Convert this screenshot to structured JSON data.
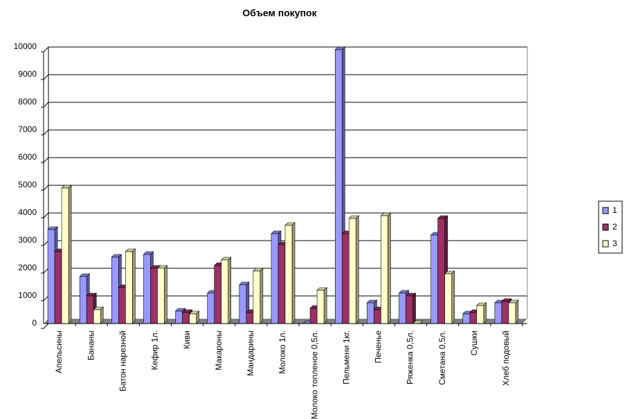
{
  "chart_data": {
    "type": "bar",
    "title": "Объем покупок",
    "categories": [
      "Апельсины",
      "Бананы",
      "Батон нарезной",
      "Кефир 1л.",
      "Киви",
      "Макароны",
      "Мандарины",
      "Молоко 1л.",
      "Молоко топленое 0,5л.",
      "Пельмени 1кг.",
      "Печенье",
      "Ряженка 0,5л.",
      "Сметана 0,5л.",
      "Сушки",
      "Хлеб подовый"
    ],
    "series": [
      {
        "name": "1",
        "color": "#9999ff",
        "values": [
          3400,
          1700,
          2400,
          2500,
          450,
          1100,
          1400,
          3250,
          0,
          9900,
          750,
          1100,
          3200,
          350,
          750
        ]
      },
      {
        "name": "2",
        "color": "#993366",
        "values": [
          2600,
          1000,
          1300,
          2000,
          400,
          2100,
          400,
          2850,
          550,
          3250,
          500,
          1000,
          3800,
          400,
          800
        ]
      },
      {
        "name": "3",
        "color": "#ffffcc",
        "values": [
          4900,
          500,
          2600,
          2000,
          350,
          2300,
          1900,
          3550,
          1200,
          3800,
          3900,
          0,
          1800,
          650,
          750
        ]
      }
    ],
    "ylim": [
      0,
      10000
    ],
    "yticks": [
      0,
      1000,
      2000,
      3000,
      4000,
      5000,
      6000,
      7000,
      8000,
      9000,
      10000
    ],
    "grid": true,
    "legend": "right"
  }
}
